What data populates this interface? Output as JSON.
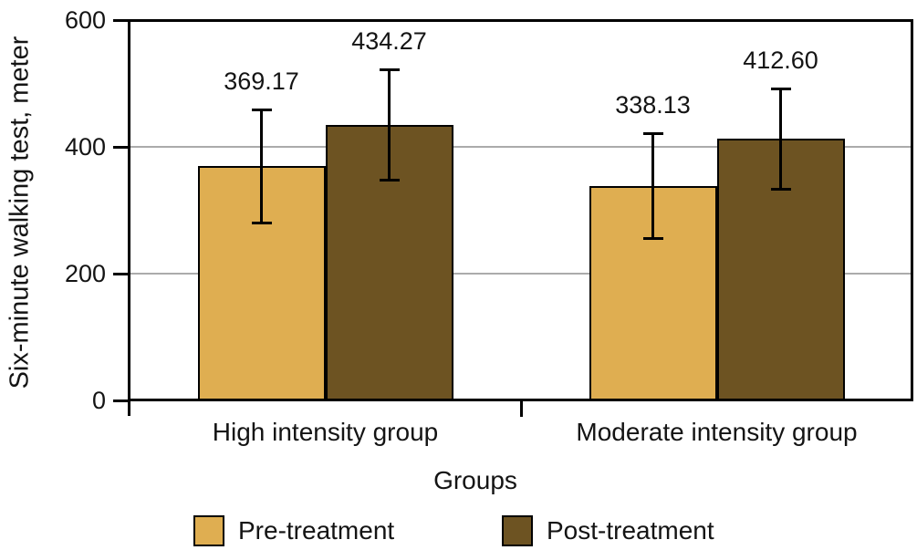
{
  "chart_data": {
    "type": "bar",
    "title": "",
    "ylabel": "Six-minute walking test, meter",
    "xlabel": "Groups",
    "ylim": [
      0,
      600
    ],
    "yticks": [
      0,
      200,
      400,
      600
    ],
    "grid": "horizontal",
    "legend_position": "bottom",
    "categories": [
      "High intensity group",
      "Moderate intensity group"
    ],
    "series": [
      {
        "name": "Pre-treatment",
        "color": "#DFAE51",
        "values": [
          369.17,
          338.13
        ],
        "errors": [
          90,
          83
        ],
        "value_labels": [
          "369.17",
          "338.13"
        ]
      },
      {
        "name": "Post-treatment",
        "color": "#6D5322",
        "values": [
          434.27,
          412.6
        ],
        "errors": [
          88,
          80
        ],
        "value_labels": [
          "434.27",
          "412.60"
        ]
      }
    ],
    "colors": {
      "axis": "#000000",
      "gridline": "#ABABAB",
      "bar_border": "#000000",
      "error_bar": "#000000",
      "text": "#141414"
    }
  }
}
